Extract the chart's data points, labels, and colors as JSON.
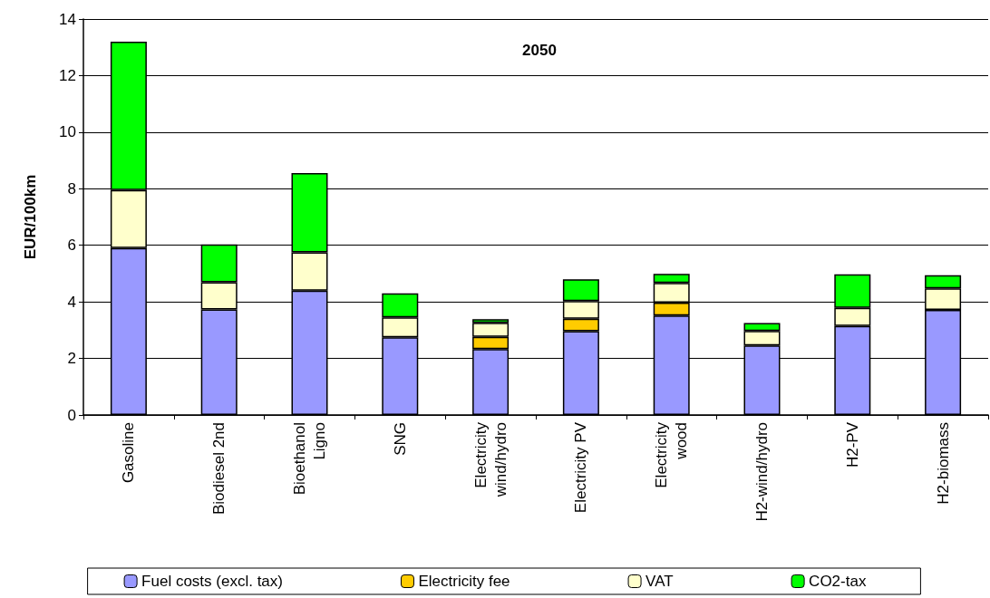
{
  "chart_data": {
    "type": "bar",
    "title": "2050",
    "ylabel": "EUR/100km",
    "stacked": true,
    "grid": "y",
    "legend": "bottom",
    "categories": [
      "Gasoline",
      "Biodiesel 2nd",
      "Bioethanol\nLigno",
      "SNG",
      "Electricity\nwind/hydro",
      "Electricity PV",
      "Electricity\nwood",
      "H2-wind/hydro",
      "H2-PV",
      "H2-biomass"
    ],
    "ylim": [
      0,
      14
    ],
    "yticks": [
      0,
      2,
      4,
      6,
      8,
      10,
      12,
      14
    ],
    "series": [
      {
        "name": "Fuel costs (excl. tax)",
        "color": "#9999ff",
        "values": [
          5.9,
          3.73,
          4.4,
          2.75,
          2.33,
          2.96,
          3.52,
          2.46,
          3.15,
          3.72
        ]
      },
      {
        "name": "Electricity fee",
        "color": "#ffcc00",
        "values": [
          null,
          null,
          null,
          null,
          0.43,
          0.44,
          0.45,
          null,
          null,
          null
        ]
      },
      {
        "name": "VAT",
        "color": "#ffffcc",
        "values": [
          2.05,
          0.96,
          1.35,
          0.7,
          0.5,
          0.63,
          0.7,
          0.51,
          0.64,
          0.76
        ]
      },
      {
        "name": "CO2-tax",
        "color": "#00ff00",
        "values": [
          5.25,
          1.34,
          2.8,
          0.85,
          0.13,
          0.77,
          0.32,
          0.28,
          1.18,
          0.46
        ]
      }
    ]
  }
}
